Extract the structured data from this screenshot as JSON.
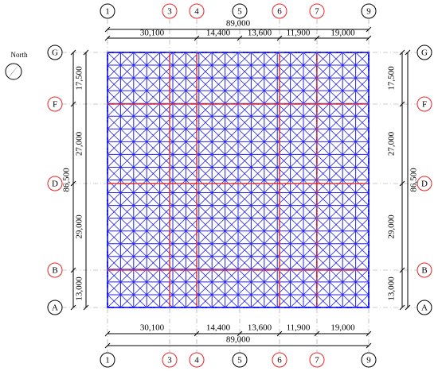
{
  "north": "North",
  "columns": [
    "1",
    "3",
    "4",
    "5",
    "6",
    "7",
    "9"
  ],
  "rows": [
    "G",
    "F",
    "D",
    "B",
    "A"
  ],
  "x_dimensions": {
    "total": "89,000",
    "spans": [
      "30,100",
      "14,400",
      "13,600",
      "11,900",
      "19,000"
    ]
  },
  "y_dimensions": {
    "total": "86,500",
    "spans": [
      "17,500",
      "27,000",
      "29,000",
      "13,000"
    ]
  }
}
